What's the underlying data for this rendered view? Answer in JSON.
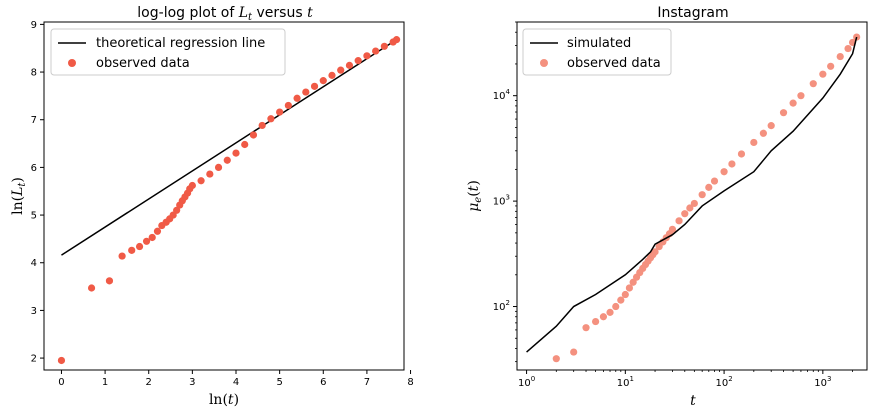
{
  "chart_data": [
    {
      "type": "scatter",
      "title": "log-log plot of L_t versus t",
      "title_parts": {
        "prefix": "log-log plot of ",
        "math_L": "L",
        "math_sub": "t",
        "middle": " versus ",
        "math_t": "t"
      },
      "xlabel": "ln(t)",
      "ylabel": "ln(L_t)",
      "xlim": [
        -0.4,
        7.85
      ],
      "ylim": [
        1.75,
        9.05
      ],
      "xticks": [
        0,
        1,
        2,
        3,
        4,
        5,
        6,
        7,
        8
      ],
      "yticks": [
        2,
        3,
        4,
        5,
        6,
        7,
        8,
        9
      ],
      "legend": {
        "position": "top-left",
        "entries": [
          {
            "label": "theoretical regression line",
            "kind": "line",
            "color": "#000000"
          },
          {
            "label": "observed data",
            "kind": "marker",
            "color": "#f05a46"
          }
        ]
      },
      "series": [
        {
          "name": "theoretical regression line",
          "kind": "line",
          "color": "#000000",
          "x": [
            0,
            7.68
          ],
          "y": [
            4.16,
            8.68
          ]
        },
        {
          "name": "observed data",
          "kind": "scatter",
          "color": "#f05a46",
          "x": [
            0,
            0.69,
            1.1,
            1.39,
            1.61,
            1.79,
            1.95,
            2.08,
            2.2,
            2.3,
            2.4,
            2.48,
            2.56,
            2.64,
            2.71,
            2.77,
            2.83,
            2.89,
            2.94,
            3.0,
            3.2,
            3.4,
            3.6,
            3.8,
            4.0,
            4.2,
            4.4,
            4.6,
            4.8,
            5.0,
            5.2,
            5.4,
            5.6,
            5.8,
            6.0,
            6.2,
            6.4,
            6.6,
            6.8,
            7.0,
            7.2,
            7.4,
            7.6,
            7.68
          ],
          "y": [
            1.95,
            3.47,
            3.62,
            4.14,
            4.26,
            4.34,
            4.45,
            4.53,
            4.66,
            4.78,
            4.85,
            4.92,
            5.0,
            5.1,
            5.21,
            5.3,
            5.38,
            5.46,
            5.55,
            5.62,
            5.72,
            5.86,
            6.0,
            6.15,
            6.3,
            6.48,
            6.68,
            6.88,
            7.02,
            7.16,
            7.3,
            7.45,
            7.58,
            7.7,
            7.82,
            7.93,
            8.04,
            8.14,
            8.24,
            8.34,
            8.44,
            8.54,
            8.63,
            8.68
          ]
        }
      ]
    },
    {
      "type": "scatter",
      "title": "Instagram",
      "xlabel": "t",
      "ylabel": "μ_e(t)",
      "xscale": "log",
      "yscale": "log",
      "xlim": [
        0.8,
        2800
      ],
      "ylim": [
        25,
        50000
      ],
      "xticks": [
        1,
        10,
        100,
        1000
      ],
      "xtick_labels": [
        {
          "base": "10",
          "exp": "0"
        },
        {
          "base": "10",
          "exp": "1"
        },
        {
          "base": "10",
          "exp": "2"
        },
        {
          "base": "10",
          "exp": "3"
        }
      ],
      "yticks": [
        100,
        1000,
        10000
      ],
      "ytick_labels": [
        {
          "base": "10",
          "exp": "2"
        },
        {
          "base": "10",
          "exp": "3"
        },
        {
          "base": "10",
          "exp": "4"
        }
      ],
      "legend": {
        "position": "top-left",
        "entries": [
          {
            "label": "simulated",
            "kind": "line",
            "color": "#000000"
          },
          {
            "label": "observed data",
            "kind": "marker",
            "color": "#f4917f"
          }
        ]
      },
      "series": [
        {
          "name": "simulated",
          "kind": "line",
          "color": "#000000",
          "x": [
            1,
            2,
            3,
            5,
            10,
            15,
            18,
            20,
            30,
            40,
            60,
            100,
            200,
            300,
            500,
            1000,
            1500,
            2000,
            2200
          ],
          "y": [
            37,
            65,
            100,
            130,
            200,
            280,
            330,
            390,
            480,
            600,
            900,
            1250,
            1900,
            3000,
            4600,
            9500,
            16000,
            25000,
            36000
          ]
        },
        {
          "name": "observed data",
          "kind": "scatter",
          "color": "#f4917f",
          "x": [
            2,
            3,
            4,
            5,
            6,
            7,
            8,
            9,
            10,
            11,
            12,
            13,
            14,
            15,
            16,
            17,
            18,
            19,
            20,
            22,
            24,
            26,
            28,
            30,
            35,
            40,
            45,
            50,
            60,
            70,
            80,
            100,
            120,
            150,
            200,
            250,
            300,
            400,
            500,
            600,
            800,
            1000,
            1200,
            1500,
            1800,
            2000,
            2200
          ],
          "y": [
            32,
            37,
            63,
            72,
            80,
            88,
            100,
            115,
            130,
            150,
            170,
            190,
            210,
            230,
            250,
            270,
            290,
            310,
            330,
            370,
            410,
            450,
            490,
            540,
            650,
            760,
            860,
            950,
            1150,
            1350,
            1550,
            1900,
            2250,
            2800,
            3600,
            4400,
            5200,
            6900,
            8500,
            10000,
            13000,
            16000,
            19000,
            23500,
            28000,
            32000,
            36000
          ]
        }
      ]
    }
  ]
}
